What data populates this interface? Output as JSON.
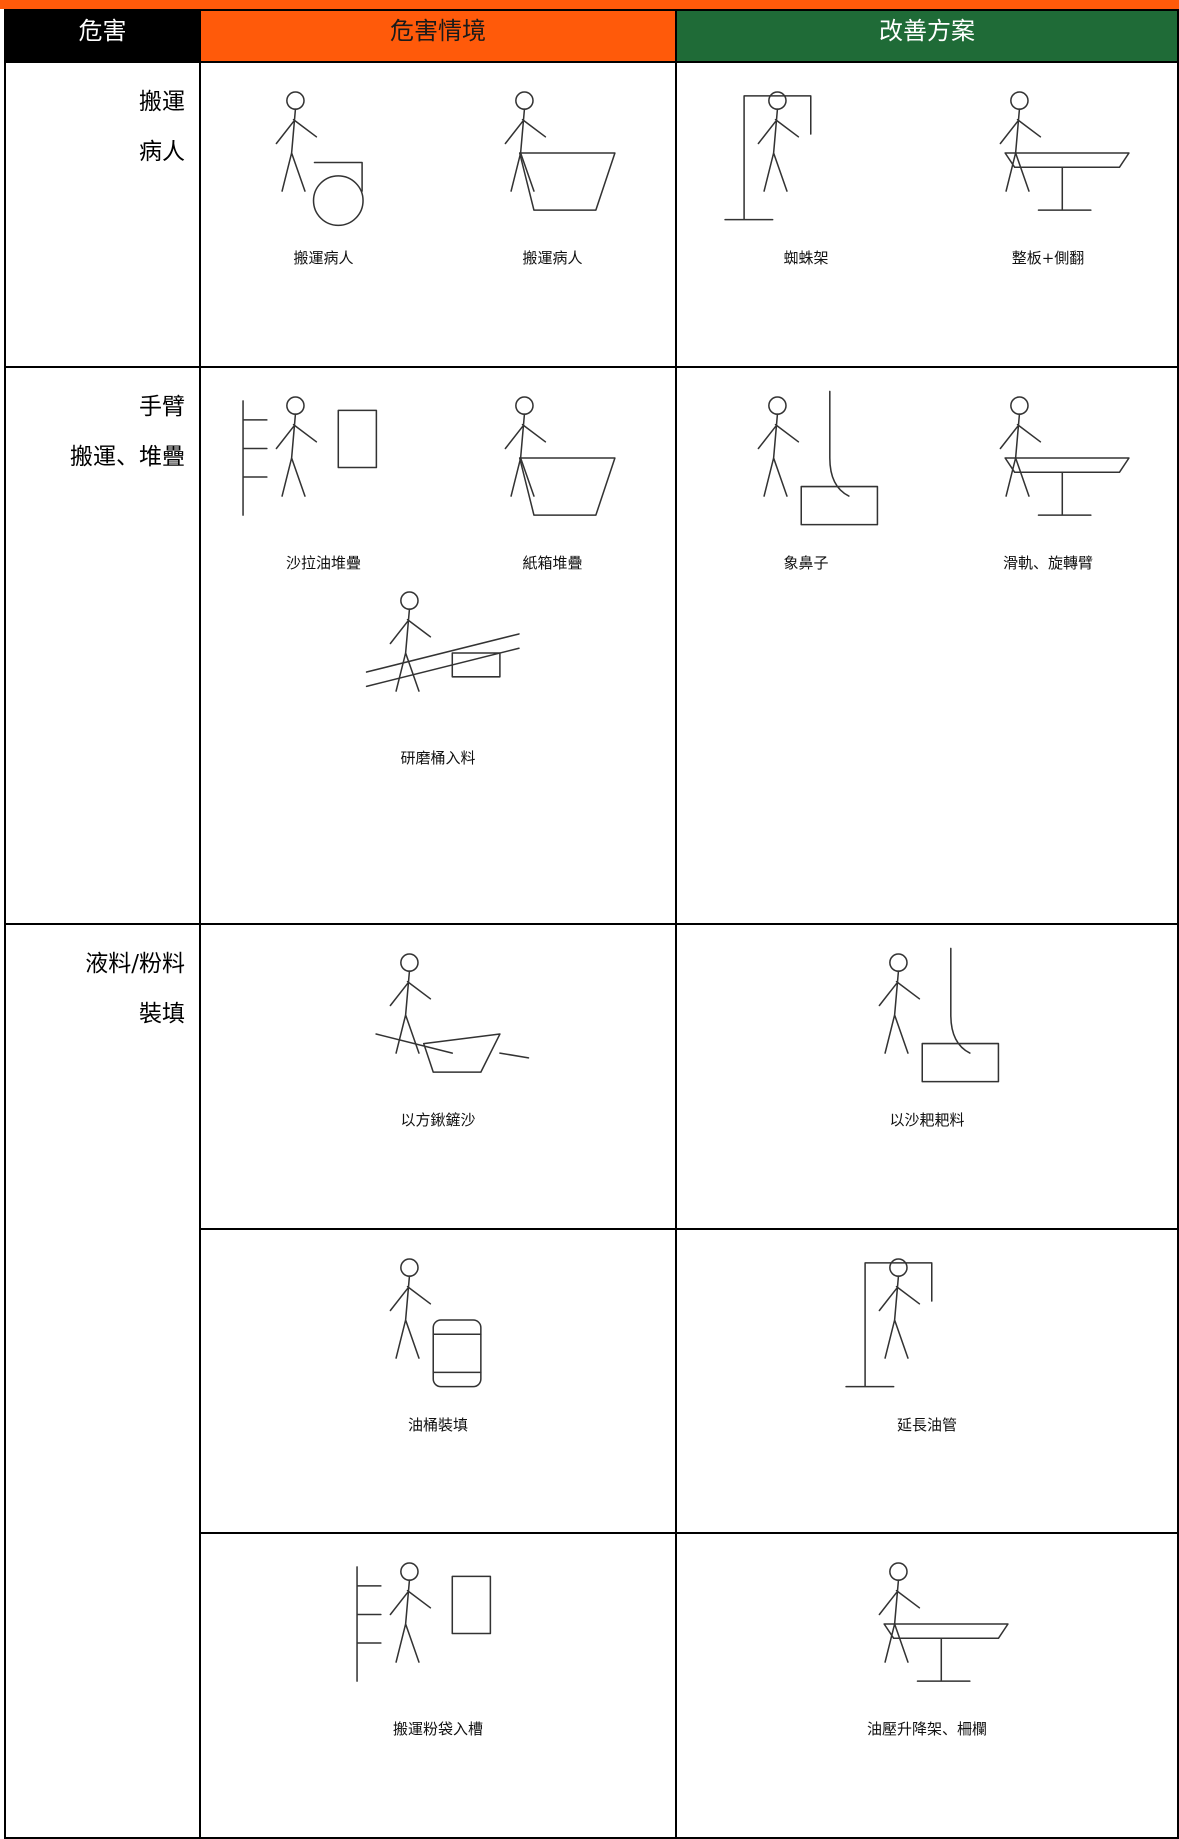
{
  "header": {
    "hazard": "危害",
    "situation": "危害情境",
    "improvement": "改善方案"
  },
  "rows": [
    {
      "hazard": [
        "搬運",
        "病人"
      ],
      "situations": [
        "搬運病人",
        "搬運病人"
      ],
      "improvements": [
        "蜘蛛架",
        "整板+側翻"
      ]
    },
    {
      "hazard": [
        "手臂",
        "搬運、堆疊"
      ],
      "situations": [
        "沙拉油堆疊",
        "紙箱堆疊",
        "研磨桶入料"
      ],
      "improvements": [
        "象鼻子",
        "滑軌、旋轉臂"
      ]
    },
    {
      "hazard": [
        "液料/粉料",
        "裝填"
      ],
      "pairs": [
        {
          "situation": "以方鍬鏟沙",
          "improvement": "以沙耙耙料"
        },
        {
          "situation": "油桶裝填",
          "improvement": "延長油管"
        },
        {
          "situation": "搬運粉袋入槽",
          "improvement": "油壓升降架、柵欄"
        }
      ]
    }
  ]
}
